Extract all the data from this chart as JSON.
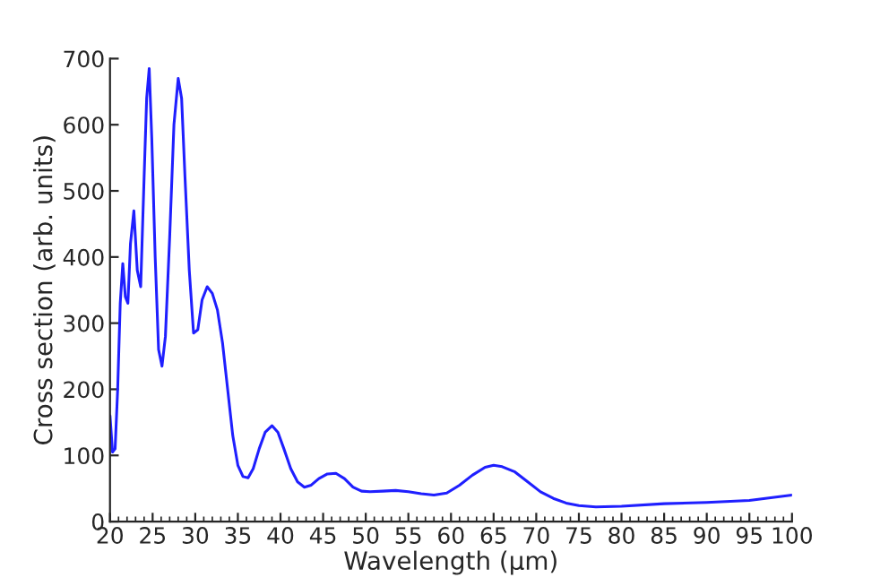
{
  "chart_data": {
    "type": "line",
    "xlabel": "Wavelength (μm)",
    "ylabel": "Cross section (arb. units)",
    "xlim": [
      20,
      100
    ],
    "ylim": [
      0,
      700
    ],
    "xticks": [
      20,
      25,
      30,
      35,
      40,
      45,
      50,
      55,
      60,
      65,
      70,
      75,
      80,
      85,
      90,
      95,
      100
    ],
    "yticks": [
      0,
      100,
      200,
      300,
      400,
      500,
      600,
      700
    ],
    "grid": false,
    "legend": false,
    "series": [
      {
        "color": "#1f1fff",
        "x": [
          20,
          20.3,
          20.6,
          20.9,
          21.2,
          21.5,
          21.8,
          22.1,
          22.4,
          22.8,
          23.2,
          23.6,
          24,
          24.3,
          24.6,
          24.9,
          25.3,
          25.7,
          26.1,
          26.5,
          27,
          27.5,
          28,
          28.4,
          28.8,
          29.3,
          29.8,
          30.3,
          30.8,
          31.4,
          32,
          32.6,
          33.2,
          33.8,
          34.4,
          35,
          35.6,
          36.2,
          36.8,
          37.5,
          38.2,
          39,
          39.7,
          40.4,
          41.2,
          42,
          42.8,
          43.6,
          44.5,
          45.5,
          46.5,
          47.5,
          48.5,
          49.5,
          50.5,
          52,
          53.5,
          55,
          56.5,
          58,
          59.5,
          61,
          62.5,
          64,
          65,
          66,
          67.5,
          69,
          70.5,
          72,
          73.5,
          75,
          77,
          80,
          85,
          90,
          95,
          100
        ],
        "values": [
          160,
          105,
          110,
          200,
          330,
          390,
          340,
          330,
          420,
          470,
          380,
          355,
          520,
          640,
          685,
          580,
          400,
          260,
          235,
          280,
          430,
          600,
          670,
          640,
          520,
          380,
          285,
          290,
          335,
          355,
          345,
          320,
          270,
          200,
          130,
          85,
          68,
          66,
          80,
          110,
          135,
          145,
          135,
          110,
          80,
          60,
          52,
          55,
          65,
          72,
          73,
          65,
          52,
          46,
          45,
          46,
          47,
          45,
          42,
          40,
          43,
          55,
          70,
          82,
          85,
          83,
          75,
          60,
          45,
          35,
          28,
          24,
          22,
          23,
          27,
          29,
          32,
          40
        ]
      }
    ]
  }
}
